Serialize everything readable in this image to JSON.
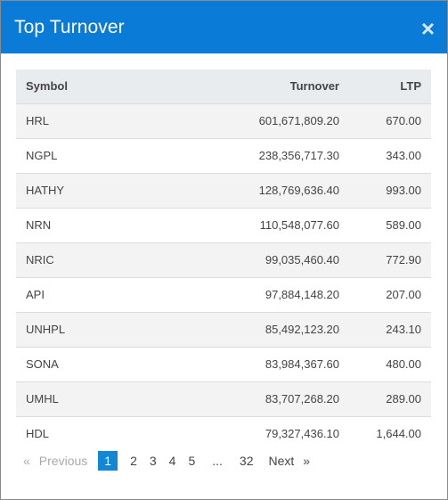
{
  "modal": {
    "title": "Top Turnover",
    "close_glyph": "×"
  },
  "table": {
    "headers": {
      "symbol": "Symbol",
      "turnover": "Turnover",
      "ltp": "LTP"
    },
    "rows": [
      {
        "symbol": "HRL",
        "turnover": "601,671,809.20",
        "ltp": "670.00"
      },
      {
        "symbol": "NGPL",
        "turnover": "238,356,717.30",
        "ltp": "343.00"
      },
      {
        "symbol": "HATHY",
        "turnover": "128,769,636.40",
        "ltp": "993.00"
      },
      {
        "symbol": "NRN",
        "turnover": "110,548,077.60",
        "ltp": "589.00"
      },
      {
        "symbol": "NRIC",
        "turnover": "99,035,460.40",
        "ltp": "772.90"
      },
      {
        "symbol": "API",
        "turnover": "97,884,148.20",
        "ltp": "207.00"
      },
      {
        "symbol": "UNHPL",
        "turnover": "85,492,123.20",
        "ltp": "243.10"
      },
      {
        "symbol": "SONA",
        "turnover": "83,984,367.60",
        "ltp": "480.00"
      },
      {
        "symbol": "UMHL",
        "turnover": "83,707,268.20",
        "ltp": "289.00"
      },
      {
        "symbol": "HDL",
        "turnover": "79,327,436.10",
        "ltp": "1,644.00"
      }
    ]
  },
  "pagination": {
    "prev_glyph": "«",
    "prev_label": "Previous",
    "pages": [
      "1",
      "2",
      "3",
      "4",
      "5"
    ],
    "active_page": "1",
    "ellipsis": "...",
    "last_page": "32",
    "next_label": "Next",
    "next_glyph": "»"
  },
  "colors": {
    "header_bg": "#0a7bd6",
    "active_page_bg": "#1287d8"
  }
}
